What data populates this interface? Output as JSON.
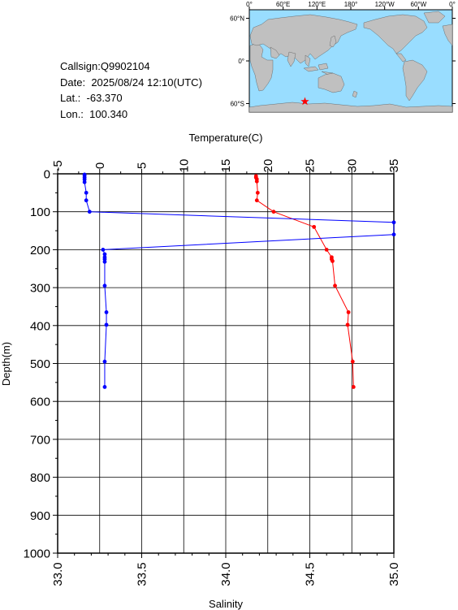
{
  "station": {
    "callsign_label": "Callsign:",
    "callsign": "Q9902104",
    "date_label": "Date:",
    "date": "2025/08/24 12:10(UTC)",
    "lat_label": "Lat.:",
    "lat": "-63.370",
    "lon_label": "Lon.:",
    "lon": "100.340"
  },
  "map": {
    "lon_ticks": [
      "0°",
      "60°E",
      "120°E",
      "180°",
      "120°W",
      "60°W",
      "0°"
    ],
    "lat_ticks": [
      "60°N",
      "0°",
      "60°S"
    ],
    "ocean_color": "#99ddff",
    "land_color": "#c0c0c0",
    "marker_color": "#ff0000",
    "marker": "star-icon"
  },
  "chart_data": {
    "type": "line",
    "xlabel_top": "Temperature(C)",
    "xlabel_bottom": "Salinity",
    "ylabel": "Depth(m)",
    "y_inverted": true,
    "temperature_range": [
      -5,
      35
    ],
    "salinity_range": [
      33.0,
      35.0
    ],
    "depth_range": [
      0,
      1000
    ],
    "temperature_ticks": [
      "-5",
      "0",
      "5",
      "10",
      "15",
      "20",
      "25",
      "30",
      "35"
    ],
    "salinity_ticks": [
      "33.0",
      "33.5",
      "34.0",
      "34.5",
      "35.0"
    ],
    "depth_ticks": [
      "0",
      "100",
      "200",
      "300",
      "400",
      "500",
      "600",
      "700",
      "800",
      "900",
      "1000"
    ],
    "grid": true,
    "series": [
      {
        "axis": "temperature",
        "color": "#ff0000",
        "depth": [
          6,
          10,
          14,
          20,
          50,
          70,
          100,
          140,
          200,
          220,
          225,
          230,
          295,
          365,
          398,
          495,
          562
        ],
        "values": [
          18.6,
          18.6,
          18.7,
          18.7,
          18.8,
          18.7,
          20.7,
          25.5,
          27.0,
          27.6,
          27.6,
          27.7,
          28.0,
          29.6,
          29.5,
          30.1,
          30.2
        ]
      },
      {
        "axis": "temperature",
        "color": "#0000ff",
        "depth": [
          2,
          5,
          10,
          15,
          22,
          50,
          70,
          100,
          128,
          160,
          200,
          212,
          220,
          225,
          232,
          295,
          365,
          398,
          495,
          562
        ]
      },
      {
        "axis": "salinity",
        "color": "#0000ff",
        "depth": [
          2,
          5,
          10,
          15,
          22,
          50,
          70,
          100,
          128,
          160,
          200,
          212,
          220,
          225,
          232,
          295,
          365,
          398,
          495,
          562
        ],
        "values": [
          33.16,
          33.16,
          33.16,
          33.16,
          33.16,
          33.17,
          33.17,
          33.19,
          35.0,
          35.0,
          33.27,
          33.28,
          33.28,
          33.28,
          33.28,
          33.28,
          33.29,
          33.29,
          33.28,
          33.28
        ]
      }
    ]
  }
}
